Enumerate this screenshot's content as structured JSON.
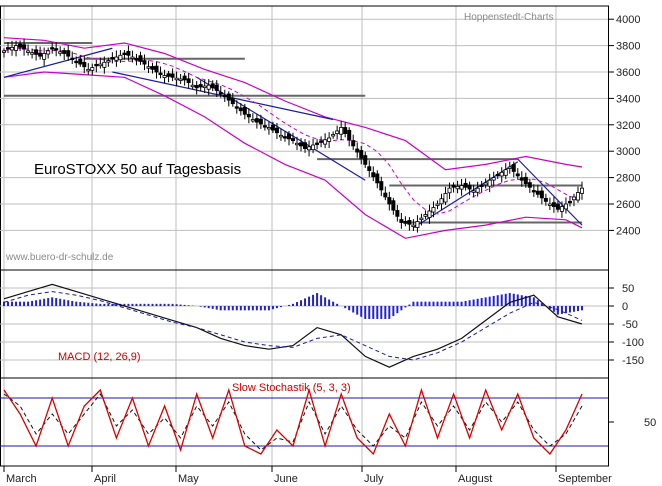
{
  "watermark_source": "Hoppenstedt-Charts",
  "watermark_url": "www.buero-dr-schulz.de",
  "colors": {
    "grid": "#bfbfbf",
    "frame": "#000000",
    "bollinger": "#cc00cc",
    "trendline": "#1a1aa8",
    "support_line": "#666666",
    "macd_line": "#111111",
    "macd_signal": "#1a1aa8",
    "macd_hist": "#2323c8",
    "stoch_k": "#dd0000",
    "stoch_d": "#111111",
    "stoch_level": "#1a1aa8",
    "label_red": "#cc0000"
  },
  "chart_data": [
    {
      "type": "candlestick",
      "title": "EuroSTOXX 50 auf Tagesbasis",
      "x_labels": [
        "March",
        "April",
        "May",
        "June",
        "July",
        "August",
        "September"
      ],
      "ylim": [
        2100,
        4100
      ],
      "y_ticks": [
        2400,
        2600,
        2800,
        3000,
        3200,
        3400,
        3600,
        3800,
        4000
      ],
      "close_path": [
        [
          0,
          3760
        ],
        [
          3,
          3800
        ],
        [
          6,
          3760
        ],
        [
          9,
          3720
        ],
        [
          12,
          3780
        ],
        [
          15,
          3740
        ],
        [
          18,
          3680
        ],
        [
          21,
          3620
        ],
        [
          24,
          3660
        ],
        [
          27,
          3700
        ],
        [
          30,
          3740
        ],
        [
          33,
          3700
        ],
        [
          36,
          3640
        ],
        [
          39,
          3580
        ],
        [
          42,
          3560
        ],
        [
          45,
          3540
        ],
        [
          48,
          3480
        ],
        [
          51,
          3500
        ],
        [
          54,
          3440
        ],
        [
          57,
          3360
        ],
        [
          60,
          3280
        ],
        [
          63,
          3220
        ],
        [
          66,
          3180
        ],
        [
          69,
          3120
        ],
        [
          72,
          3080
        ],
        [
          75,
          3020
        ],
        [
          78,
          3060
        ],
        [
          81,
          3100
        ],
        [
          84,
          3180
        ],
        [
          87,
          3040
        ],
        [
          90,
          2900
        ],
        [
          93,
          2760
        ],
        [
          96,
          2600
        ],
        [
          99,
          2460
        ],
        [
          102,
          2440
        ],
        [
          105,
          2520
        ],
        [
          108,
          2600
        ],
        [
          111,
          2720
        ],
        [
          114,
          2740
        ],
        [
          117,
          2700
        ],
        [
          120,
          2760
        ],
        [
          123,
          2820
        ],
        [
          126,
          2880
        ],
        [
          129,
          2780
        ],
        [
          132,
          2700
        ],
        [
          135,
          2620
        ],
        [
          138,
          2560
        ],
        [
          141,
          2620
        ],
        [
          144,
          2720
        ]
      ],
      "bollinger_upper_path": [
        [
          0,
          3860
        ],
        [
          10,
          3840
        ],
        [
          20,
          3780
        ],
        [
          30,
          3820
        ],
        [
          40,
          3740
        ],
        [
          50,
          3620
        ],
        [
          60,
          3520
        ],
        [
          70,
          3380
        ],
        [
          80,
          3260
        ],
        [
          90,
          3180
        ],
        [
          100,
          3080
        ],
        [
          110,
          2860
        ],
        [
          120,
          2900
        ],
        [
          130,
          2960
        ],
        [
          140,
          2900
        ],
        [
          144,
          2880
        ]
      ],
      "bollinger_lower_path": [
        [
          0,
          3560
        ],
        [
          10,
          3600
        ],
        [
          20,
          3580
        ],
        [
          30,
          3560
        ],
        [
          40,
          3420
        ],
        [
          50,
          3260
        ],
        [
          60,
          3060
        ],
        [
          70,
          2900
        ],
        [
          80,
          2780
        ],
        [
          90,
          2520
        ],
        [
          100,
          2340
        ],
        [
          110,
          2400
        ],
        [
          120,
          2440
        ],
        [
          130,
          2500
        ],
        [
          140,
          2480
        ],
        [
          144,
          2420
        ]
      ],
      "horizontal_lines": [
        3820,
        3700,
        3420,
        2940,
        2740,
        2460
      ],
      "trendlines": [
        [
          [
            0,
            3560
          ],
          [
            27,
            3780
          ]
        ],
        [
          [
            27,
            3600
          ],
          [
            82,
            3240
          ]
        ],
        [
          [
            48,
            3560
          ],
          [
            90,
            2780
          ]
        ],
        [
          [
            102,
            2420
          ],
          [
            128,
            2920
          ]
        ],
        [
          [
            128,
            2940
          ],
          [
            144,
            2440
          ]
        ]
      ]
    },
    {
      "type": "line",
      "title": "MACD (12, 26,9)",
      "ylim": [
        -200,
        100
      ],
      "y_ticks": [
        50,
        0,
        -50,
        -100,
        -150
      ],
      "macd_path": [
        [
          0,
          20
        ],
        [
          6,
          40
        ],
        [
          12,
          60
        ],
        [
          18,
          40
        ],
        [
          24,
          20
        ],
        [
          30,
          0
        ],
        [
          36,
          -20
        ],
        [
          42,
          -40
        ],
        [
          48,
          -60
        ],
        [
          54,
          -90
        ],
        [
          60,
          -110
        ],
        [
          66,
          -120
        ],
        [
          72,
          -110
        ],
        [
          78,
          -60
        ],
        [
          84,
          -80
        ],
        [
          90,
          -140
        ],
        [
          96,
          -170
        ],
        [
          102,
          -140
        ],
        [
          108,
          -120
        ],
        [
          114,
          -90
        ],
        [
          120,
          -40
        ],
        [
          126,
          10
        ],
        [
          132,
          30
        ],
        [
          138,
          -30
        ],
        [
          144,
          -50
        ]
      ],
      "signal_path": [
        [
          0,
          10
        ],
        [
          6,
          30
        ],
        [
          12,
          40
        ],
        [
          18,
          30
        ],
        [
          24,
          15
        ],
        [
          30,
          -5
        ],
        [
          36,
          -25
        ],
        [
          42,
          -45
        ],
        [
          48,
          -60
        ],
        [
          54,
          -80
        ],
        [
          60,
          -100
        ],
        [
          66,
          -110
        ],
        [
          72,
          -115
        ],
        [
          78,
          -90
        ],
        [
          84,
          -80
        ],
        [
          90,
          -110
        ],
        [
          96,
          -140
        ],
        [
          102,
          -150
        ],
        [
          108,
          -130
        ],
        [
          114,
          -100
        ],
        [
          120,
          -60
        ],
        [
          126,
          -20
        ],
        [
          132,
          10
        ],
        [
          138,
          -10
        ],
        [
          144,
          -40
        ]
      ]
    },
    {
      "type": "line",
      "title": "Slow Stochastik (5, 3, 3)",
      "ylim": [
        0,
        100
      ],
      "y_ticks": [
        50
      ],
      "levels": [
        80,
        20
      ],
      "k_path": [
        [
          0,
          90
        ],
        [
          4,
          60
        ],
        [
          8,
          20
        ],
        [
          12,
          80
        ],
        [
          16,
          20
        ],
        [
          20,
          70
        ],
        [
          24,
          90
        ],
        [
          28,
          30
        ],
        [
          32,
          80
        ],
        [
          36,
          20
        ],
        [
          40,
          70
        ],
        [
          44,
          15
        ],
        [
          48,
          85
        ],
        [
          52,
          30
        ],
        [
          56,
          90
        ],
        [
          60,
          20
        ],
        [
          64,
          10
        ],
        [
          68,
          40
        ],
        [
          72,
          20
        ],
        [
          76,
          90
        ],
        [
          80,
          20
        ],
        [
          84,
          85
        ],
        [
          88,
          30
        ],
        [
          92,
          10
        ],
        [
          96,
          60
        ],
        [
          100,
          20
        ],
        [
          104,
          90
        ],
        [
          108,
          30
        ],
        [
          112,
          85
        ],
        [
          116,
          30
        ],
        [
          120,
          90
        ],
        [
          124,
          40
        ],
        [
          128,
          85
        ],
        [
          132,
          30
        ],
        [
          136,
          10
        ],
        [
          140,
          40
        ],
        [
          144,
          85
        ]
      ],
      "d_path": [
        [
          0,
          85
        ],
        [
          4,
          70
        ],
        [
          8,
          35
        ],
        [
          12,
          60
        ],
        [
          16,
          35
        ],
        [
          20,
          60
        ],
        [
          24,
          85
        ],
        [
          28,
          45
        ],
        [
          32,
          65
        ],
        [
          36,
          35
        ],
        [
          40,
          55
        ],
        [
          44,
          30
        ],
        [
          48,
          70
        ],
        [
          52,
          45
        ],
        [
          56,
          75
        ],
        [
          60,
          35
        ],
        [
          64,
          15
        ],
        [
          68,
          30
        ],
        [
          72,
          25
        ],
        [
          76,
          75
        ],
        [
          80,
          35
        ],
        [
          84,
          70
        ],
        [
          88,
          40
        ],
        [
          92,
          20
        ],
        [
          96,
          45
        ],
        [
          100,
          30
        ],
        [
          104,
          75
        ],
        [
          108,
          45
        ],
        [
          112,
          70
        ],
        [
          116,
          40
        ],
        [
          120,
          75
        ],
        [
          124,
          50
        ],
        [
          128,
          75
        ],
        [
          132,
          40
        ],
        [
          136,
          20
        ],
        [
          140,
          35
        ],
        [
          144,
          70
        ]
      ]
    }
  ]
}
